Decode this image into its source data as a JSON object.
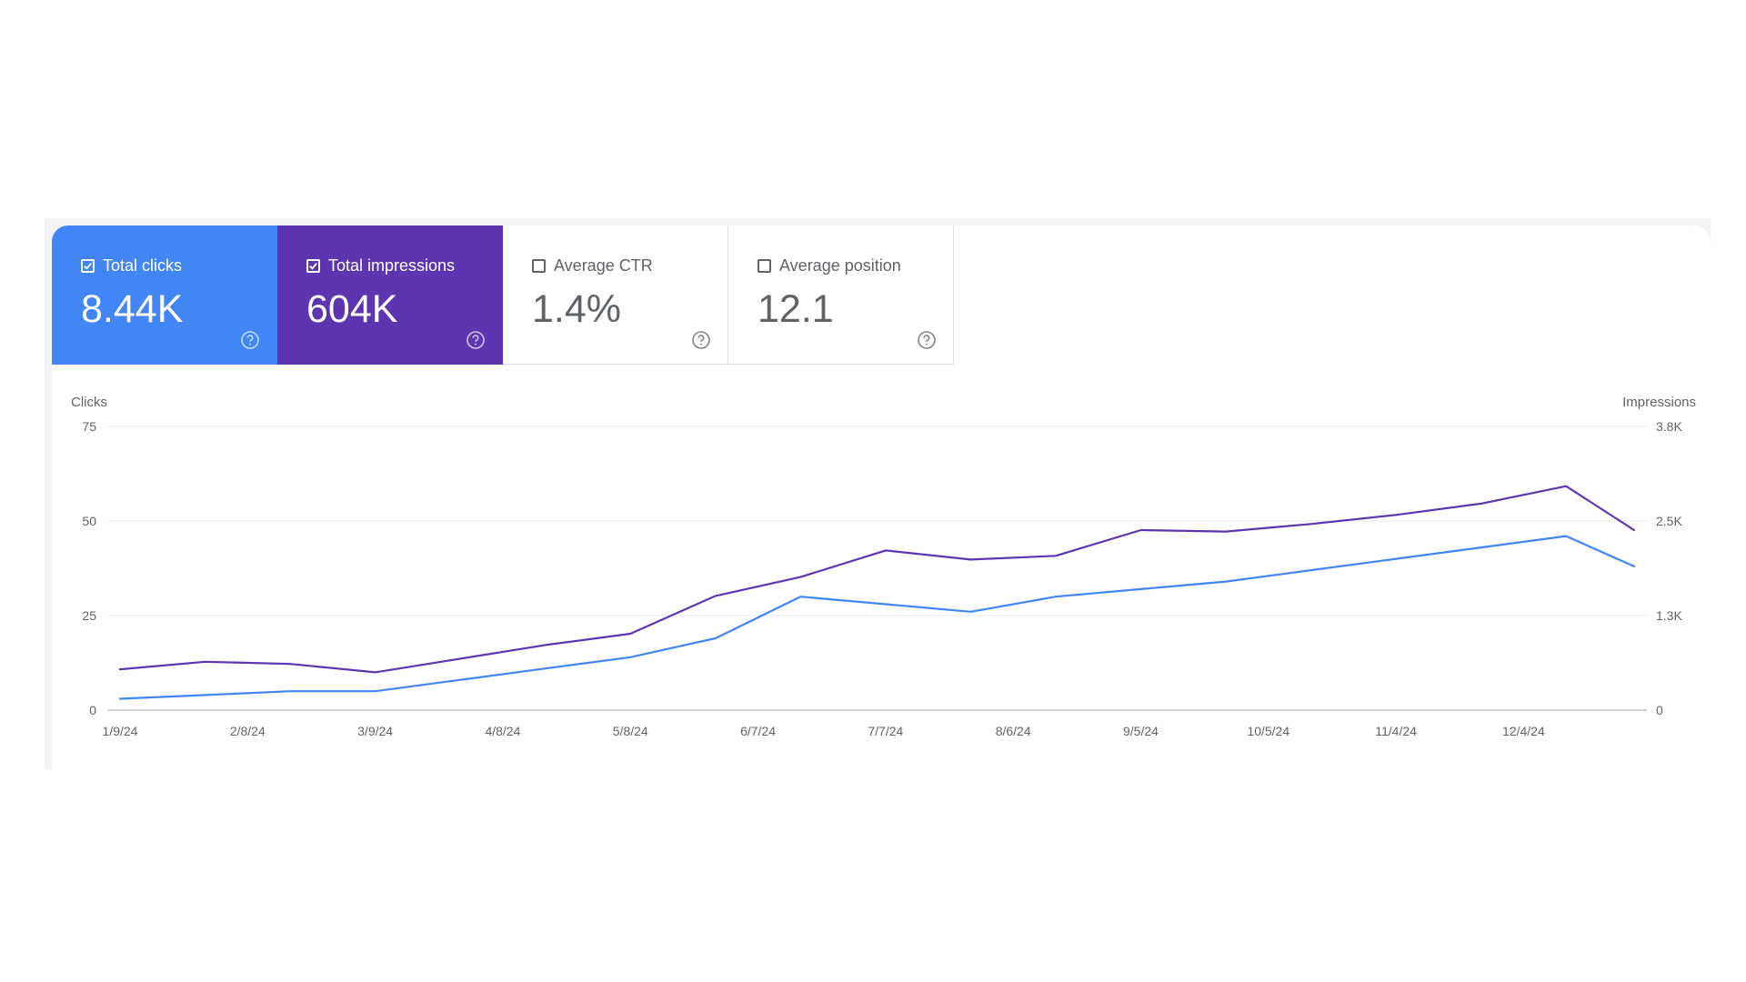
{
  "metrics": [
    {
      "label": "Total clicks",
      "value": "8.44K",
      "checked": true,
      "color": "#4285f4",
      "icon": "help-circle-icon"
    },
    {
      "label": "Total impressions",
      "value": "604K",
      "checked": true,
      "color": "#5e35b1",
      "icon": "help-circle-icon"
    },
    {
      "label": "Average CTR",
      "value": "1.4%",
      "checked": false,
      "icon": "help-circle-icon"
    },
    {
      "label": "Average position",
      "value": "12.1",
      "checked": false,
      "icon": "help-circle-icon"
    }
  ],
  "chart_data": {
    "type": "line",
    "xlabel": "",
    "y_left_label": "Clicks",
    "y_right_label": "Impressions",
    "x_ticks": [
      "1/9/24",
      "2/8/24",
      "3/9/24",
      "4/8/24",
      "5/8/24",
      "6/7/24",
      "7/7/24",
      "8/6/24",
      "9/5/24",
      "10/5/24",
      "11/4/24",
      "12/4/24"
    ],
    "x": [
      "1/9/24",
      "1/29/24",
      "2/18/24",
      "3/9/24",
      "3/29/24",
      "4/18/24",
      "5/8/24",
      "5/28/24",
      "6/17/24",
      "7/7/24",
      "7/27/24",
      "8/16/24",
      "9/5/24",
      "9/25/24",
      "10/15/24",
      "11/4/24",
      "11/24/24",
      "12/14/24",
      "12/30/24"
    ],
    "y_left_ticks": [
      "0",
      "25",
      "50",
      "75"
    ],
    "y_right_ticks": [
      "0",
      "1.3K",
      "2.5K",
      "3.8K"
    ],
    "ylim_left": [
      0,
      75
    ],
    "ylim_right": [
      0,
      3750
    ],
    "grid": true,
    "series": [
      {
        "name": "Clicks",
        "axis": "left",
        "color": "#4285f4",
        "values": [
          3,
          4,
          5,
          5,
          8,
          11,
          14,
          19,
          30,
          28,
          26,
          30,
          32,
          34,
          37,
          40,
          43,
          46,
          38
        ]
      },
      {
        "name": "Impressions",
        "axis": "right",
        "color": "#5e35b1",
        "values": [
          540,
          640,
          610,
          500,
          680,
          860,
          1010,
          1510,
          1760,
          2110,
          1990,
          2040,
          2380,
          2360,
          2460,
          2580,
          2730,
          2960,
          2380
        ]
      }
    ]
  }
}
